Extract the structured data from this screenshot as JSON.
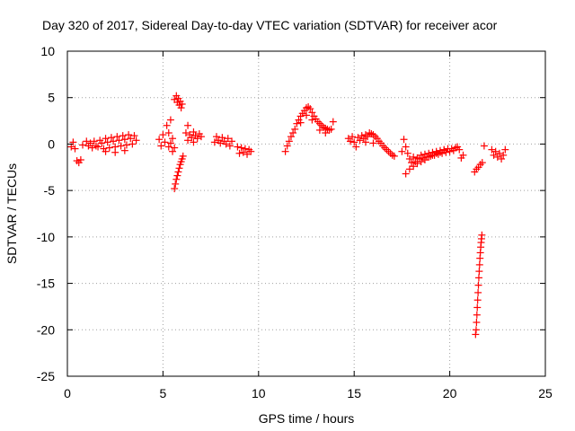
{
  "chart_data": {
    "type": "scatter",
    "title": "Day 320 of 2017, Sidereal Day-to-day VTEC variation (SDTVAR) for receiver acor",
    "xlabel": "GPS time / hours",
    "ylabel": "SDTVAR / TECUs",
    "xlim": [
      0,
      25
    ],
    "ylim": [
      -25,
      10
    ],
    "xticks": [
      0,
      5,
      10,
      15,
      20,
      25
    ],
    "yticks": [
      10,
      5,
      0,
      -5,
      -10,
      -15,
      -20,
      -25
    ],
    "xtick_labels": [
      "0",
      "5",
      "10",
      "15",
      "20",
      "25"
    ],
    "ytick_labels": [
      "10",
      "5",
      "0",
      "-5",
      "-10",
      "-15",
      "-20",
      "-25"
    ],
    "grid": true,
    "marker": "+",
    "color": "#ff0000",
    "segments": [
      {
        "name": "early-cluster",
        "points": [
          [
            0.2,
            -0.3
          ],
          [
            0.3,
            0.2
          ],
          [
            0.4,
            -0.5
          ],
          [
            0.5,
            -1.8
          ],
          [
            0.6,
            -2.0
          ],
          [
            0.7,
            -1.7
          ],
          [
            0.8,
            -0.1
          ],
          [
            1.0,
            0.3
          ],
          [
            1.1,
            -0.2
          ],
          [
            1.2,
            0.1
          ],
          [
            1.3,
            -0.4
          ],
          [
            1.4,
            0.3
          ],
          [
            1.5,
            -0.2
          ]
        ]
      },
      {
        "name": "band-1-4h",
        "points": [
          [
            1.6,
            -0.3
          ],
          [
            1.7,
            0.4
          ],
          [
            1.8,
            0.1
          ],
          [
            1.9,
            -0.5
          ],
          [
            2.0,
            0.6
          ],
          [
            2.1,
            0.2
          ],
          [
            2.2,
            -0.4
          ],
          [
            2.3,
            0.7
          ],
          [
            2.4,
            0.3
          ],
          [
            2.5,
            -0.3
          ],
          [
            2.6,
            0.8
          ],
          [
            2.7,
            0.4
          ],
          [
            2.8,
            -0.2
          ],
          [
            2.9,
            0.9
          ],
          [
            3.0,
            0.5
          ],
          [
            3.1,
            -0.1
          ],
          [
            3.2,
            1.0
          ],
          [
            3.3,
            0.6
          ],
          [
            3.4,
            0.0
          ],
          [
            3.5,
            0.9
          ],
          [
            3.6,
            0.4
          ],
          [
            2.0,
            -0.8
          ],
          [
            2.5,
            -0.9
          ],
          [
            3.0,
            -0.7
          ]
        ]
      },
      {
        "name": "cluster-5h",
        "points": [
          [
            4.8,
            0.5
          ],
          [
            4.9,
            -0.2
          ],
          [
            5.0,
            1.0
          ],
          [
            5.1,
            0.2
          ],
          [
            5.2,
            2.0
          ],
          [
            5.3,
            1.2
          ],
          [
            5.4,
            2.6
          ],
          [
            5.5,
            0.6
          ],
          [
            5.6,
            -0.4
          ],
          [
            5.3,
            -0.3
          ],
          [
            5.4,
            0.1
          ],
          [
            5.5,
            -0.8
          ]
        ]
      },
      {
        "name": "spike-up-5.8h",
        "points": [
          [
            5.6,
            4.8
          ],
          [
            5.7,
            5.2
          ],
          [
            5.75,
            4.5
          ],
          [
            5.8,
            4.9
          ],
          [
            5.85,
            4.2
          ],
          [
            5.9,
            4.6
          ],
          [
            5.95,
            3.9
          ],
          [
            6.0,
            4.3
          ]
        ]
      },
      {
        "name": "spike-down-5.8h",
        "points": [
          [
            5.6,
            -4.8
          ],
          [
            5.65,
            -4.3
          ],
          [
            5.7,
            -3.8
          ],
          [
            5.75,
            -3.4
          ],
          [
            5.8,
            -3.0
          ],
          [
            5.85,
            -2.6
          ],
          [
            5.9,
            -2.2
          ],
          [
            5.95,
            -1.9
          ],
          [
            6.0,
            -1.6
          ],
          [
            6.05,
            -1.3
          ]
        ]
      },
      {
        "name": "cluster-6h",
        "points": [
          [
            6.2,
            1.2
          ],
          [
            6.3,
            2.0
          ],
          [
            6.4,
            1.0
          ],
          [
            6.5,
            0.7
          ],
          [
            6.6,
            1.3
          ],
          [
            6.7,
            0.9
          ],
          [
            6.8,
            0.6
          ],
          [
            6.9,
            1.1
          ],
          [
            7.0,
            0.8
          ],
          [
            6.3,
            0.4
          ],
          [
            6.6,
            0.2
          ]
        ]
      },
      {
        "name": "cluster-8h",
        "points": [
          [
            7.7,
            0.2
          ],
          [
            7.8,
            0.8
          ],
          [
            7.9,
            0.4
          ],
          [
            8.0,
            0.1
          ],
          [
            8.1,
            0.7
          ],
          [
            8.2,
            0.3
          ],
          [
            8.3,
            0.0
          ],
          [
            8.4,
            0.6
          ],
          [
            8.5,
            -0.2
          ],
          [
            8.6,
            0.3
          ]
        ]
      },
      {
        "name": "cluster-9h",
        "points": [
          [
            8.9,
            -0.3
          ],
          [
            9.0,
            -1.0
          ],
          [
            9.1,
            -0.4
          ],
          [
            9.2,
            -0.9
          ],
          [
            9.3,
            -0.5
          ],
          [
            9.4,
            -1.1
          ],
          [
            9.5,
            -0.6
          ],
          [
            9.6,
            -0.8
          ]
        ]
      },
      {
        "name": "hump-11-14h",
        "points": [
          [
            11.4,
            -0.8
          ],
          [
            11.5,
            -0.2
          ],
          [
            11.6,
            0.3
          ],
          [
            11.7,
            0.8
          ],
          [
            11.8,
            1.2
          ],
          [
            11.9,
            1.6
          ],
          [
            12.0,
            2.2
          ],
          [
            12.1,
            2.6
          ],
          [
            12.2,
            3.0
          ],
          [
            12.3,
            3.3
          ],
          [
            12.4,
            3.6
          ],
          [
            12.5,
            3.9
          ],
          [
            12.6,
            4.0
          ],
          [
            12.7,
            3.8
          ],
          [
            12.8,
            3.4
          ],
          [
            12.9,
            3.0
          ],
          [
            13.0,
            2.7
          ],
          [
            13.1,
            2.4
          ],
          [
            13.2,
            2.2
          ],
          [
            13.3,
            2.0
          ],
          [
            13.4,
            1.8
          ],
          [
            13.5,
            1.7
          ],
          [
            13.6,
            1.6
          ],
          [
            13.7,
            1.5
          ],
          [
            13.8,
            1.6
          ],
          [
            13.9,
            2.4
          ],
          [
            12.2,
            2.3
          ],
          [
            12.5,
            3.1
          ],
          [
            12.8,
            2.6
          ],
          [
            13.2,
            1.5
          ],
          [
            13.5,
            1.2
          ]
        ]
      },
      {
        "name": "plateau-15-17h",
        "points": [
          [
            14.7,
            0.6
          ],
          [
            14.8,
            0.3
          ],
          [
            14.9,
            0.8
          ],
          [
            15.0,
            0.2
          ],
          [
            15.1,
            -0.3
          ],
          [
            15.2,
            0.7
          ],
          [
            15.3,
            0.4
          ],
          [
            15.4,
            0.9
          ],
          [
            15.5,
            0.6
          ],
          [
            15.6,
            1.0
          ],
          [
            15.7,
            0.8
          ],
          [
            15.8,
            1.2
          ],
          [
            15.9,
            1.1
          ],
          [
            16.0,
            1.0
          ],
          [
            16.1,
            0.8
          ],
          [
            16.2,
            0.6
          ],
          [
            16.3,
            0.3
          ],
          [
            16.4,
            0.1
          ],
          [
            16.5,
            -0.2
          ],
          [
            16.6,
            -0.4
          ],
          [
            16.7,
            -0.6
          ],
          [
            16.8,
            -0.8
          ],
          [
            16.9,
            -1.0
          ],
          [
            17.0,
            -1.2
          ],
          [
            17.1,
            -1.3
          ],
          [
            16.0,
            0.1
          ],
          [
            15.6,
            0.2
          ]
        ]
      },
      {
        "name": "band-18-20h",
        "points": [
          [
            17.5,
            -0.8
          ],
          [
            17.6,
            0.5
          ],
          [
            17.7,
            -0.3
          ],
          [
            17.8,
            -1.0
          ],
          [
            17.9,
            -1.6
          ],
          [
            18.0,
            -2.0
          ],
          [
            18.1,
            -1.4
          ],
          [
            18.2,
            -1.9
          ],
          [
            18.3,
            -1.5
          ],
          [
            18.4,
            -1.6
          ],
          [
            18.5,
            -1.2
          ],
          [
            18.6,
            -1.5
          ],
          [
            18.7,
            -1.1
          ],
          [
            18.8,
            -1.4
          ],
          [
            18.9,
            -1.0
          ],
          [
            19.0,
            -1.3
          ],
          [
            19.1,
            -0.9
          ],
          [
            19.2,
            -1.2
          ],
          [
            19.3,
            -0.8
          ],
          [
            19.4,
            -1.1
          ],
          [
            19.5,
            -0.7
          ],
          [
            19.6,
            -1.0
          ],
          [
            19.7,
            -0.6
          ],
          [
            19.8,
            -0.9
          ],
          [
            19.9,
            -0.5
          ],
          [
            20.0,
            -0.8
          ],
          [
            20.1,
            -0.5
          ],
          [
            20.2,
            -0.7
          ],
          [
            20.3,
            -0.4
          ],
          [
            20.4,
            -0.3
          ],
          [
            20.5,
            -0.6
          ],
          [
            17.7,
            -3.2
          ],
          [
            17.9,
            -2.7
          ],
          [
            18.1,
            -2.4
          ],
          [
            18.3,
            -2.1
          ],
          [
            18.5,
            -1.9
          ],
          [
            18.7,
            -1.7
          ],
          [
            18.9,
            -1.4
          ],
          [
            19.1,
            -1.2
          ],
          [
            19.3,
            -1.0
          ],
          [
            19.5,
            -0.9
          ],
          [
            19.7,
            -0.7
          ]
        ]
      },
      {
        "name": "tail-21h",
        "points": [
          [
            20.6,
            -1.5
          ],
          [
            20.7,
            -1.2
          ],
          [
            21.3,
            -3.0
          ],
          [
            21.4,
            -2.7
          ],
          [
            21.5,
            -2.5
          ],
          [
            21.6,
            -2.2
          ],
          [
            21.7,
            -2.0
          ],
          [
            21.8,
            -0.2
          ]
        ]
      },
      {
        "name": "steep-drop-21.5h",
        "points": [
          [
            21.35,
            -20.5
          ],
          [
            21.38,
            -20.0
          ],
          [
            21.4,
            -19.2
          ],
          [
            21.42,
            -18.4
          ],
          [
            21.44,
            -17.6
          ],
          [
            21.46,
            -16.8
          ],
          [
            21.48,
            -16.0
          ],
          [
            21.5,
            -15.2
          ],
          [
            21.52,
            -14.4
          ],
          [
            21.54,
            -13.7
          ],
          [
            21.56,
            -13.0
          ],
          [
            21.58,
            -12.3
          ],
          [
            21.6,
            -11.7
          ],
          [
            21.62,
            -11.1
          ],
          [
            21.64,
            -10.6
          ],
          [
            21.66,
            -10.2
          ],
          [
            21.68,
            -9.8
          ]
        ]
      },
      {
        "name": "final-22.5h",
        "points": [
          [
            22.2,
            -0.6
          ],
          [
            22.3,
            -1.2
          ],
          [
            22.4,
            -0.8
          ],
          [
            22.5,
            -1.4
          ],
          [
            22.6,
            -1.0
          ],
          [
            22.7,
            -1.6
          ],
          [
            22.8,
            -1.2
          ],
          [
            22.9,
            -0.6
          ]
        ]
      }
    ]
  }
}
